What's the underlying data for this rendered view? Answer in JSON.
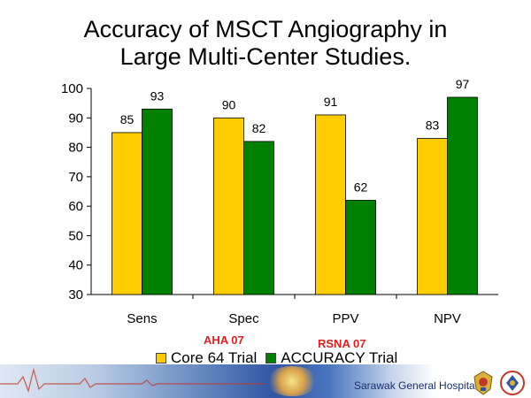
{
  "title": "Accuracy of MSCT Angiography in\nLarge Multi-Center Studies.",
  "chart_data": {
    "type": "bar",
    "title": "Accuracy of MSCT Angiography in Large Multi-Center Studies.",
    "categories": [
      "Sens",
      "Spec",
      "PPV",
      "NPV"
    ],
    "series": [
      {
        "name": "Core 64 Trial",
        "values": [
          85,
          90,
          91,
          83
        ],
        "color": "#ffcc00"
      },
      {
        "name": "ACCURACY Trial",
        "values": [
          93,
          82,
          62,
          97
        ],
        "color": "#008000"
      }
    ],
    "ylim": [
      30,
      100
    ],
    "yticks": [
      30,
      40,
      50,
      60,
      70,
      80,
      90,
      100
    ],
    "xlabel": "",
    "ylabel": "",
    "grid": false,
    "legend_position": "bottom"
  },
  "notes": {
    "aha": "AHA 07",
    "rsna": "RSNA 07"
  },
  "legend": {
    "core_label": "Core 64 Trial",
    "accuracy_label": "ACCURACY Trial"
  },
  "footer": {
    "hospital_name": "Sarawak General Hospital",
    "colors": {
      "band_dark": "#2f55a3",
      "text": "#1a2f6e",
      "annotation": "#e02020"
    },
    "icons": [
      "ecg-line-icon",
      "state-crest-icon",
      "ministry-logo-icon"
    ]
  }
}
